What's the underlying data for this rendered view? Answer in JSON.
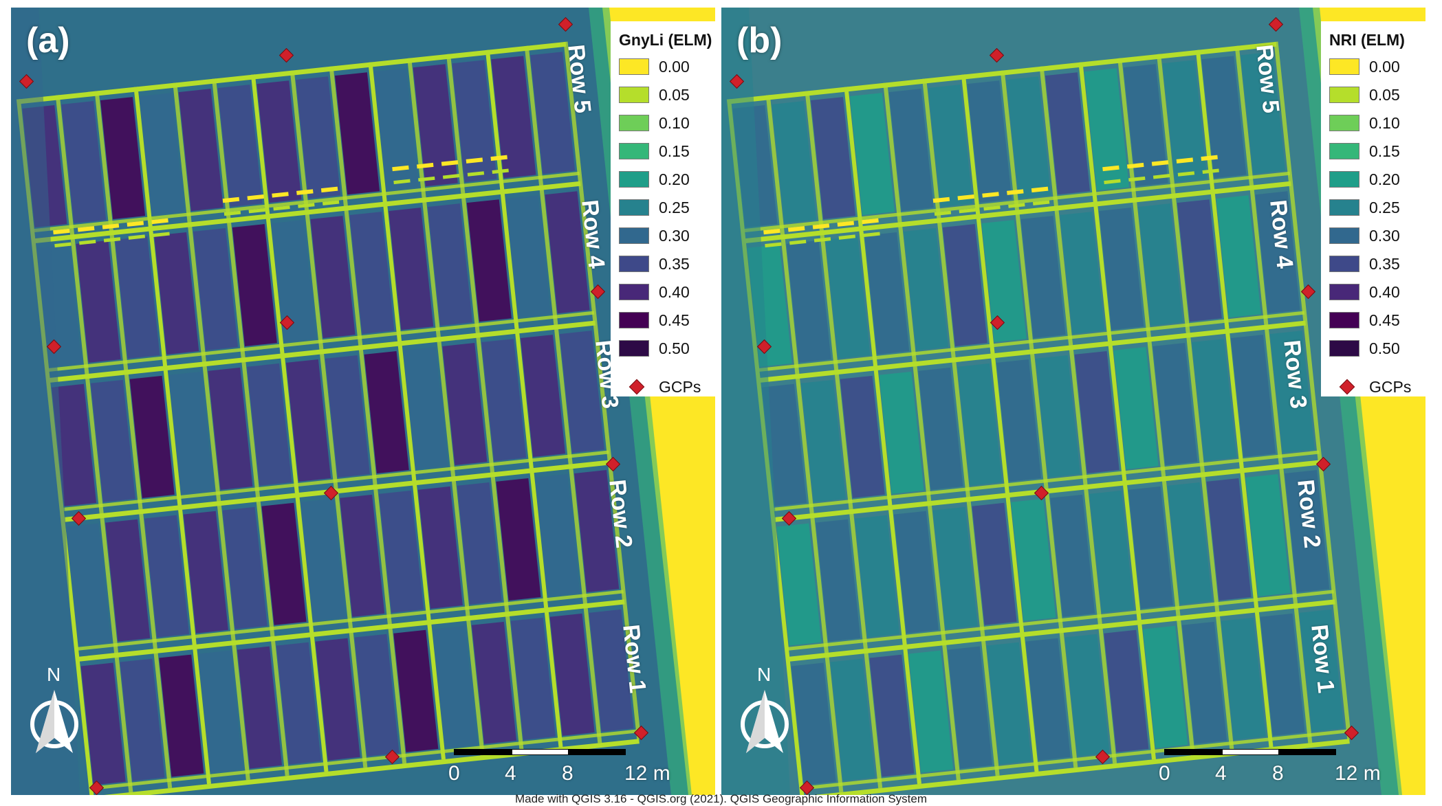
{
  "panels": [
    {
      "letter": "(a)",
      "legend_title": "GnyLi (ELM)",
      "background": "#2f6f8a"
    },
    {
      "letter": "(b)",
      "legend_title": "NRI (ELM)",
      "background": "#3b7f8c"
    }
  ],
  "legend": {
    "items": [
      {
        "label": "0.00",
        "color": "#fde725"
      },
      {
        "label": "0.05",
        "color": "#b5de2b"
      },
      {
        "label": "0.10",
        "color": "#6ece58"
      },
      {
        "label": "0.15",
        "color": "#35b779"
      },
      {
        "label": "0.20",
        "color": "#1f9e89"
      },
      {
        "label": "0.25",
        "color": "#26828e"
      },
      {
        "label": "0.30",
        "color": "#31688e"
      },
      {
        "label": "0.35",
        "color": "#3e4989"
      },
      {
        "label": "0.40",
        "color": "#482878"
      },
      {
        "label": "0.45",
        "color": "#440154"
      },
      {
        "label": "0.50",
        "color": "#2d0a46"
      }
    ],
    "gcp_label": "GCPs",
    "gcp_color": "#d0202a"
  },
  "row_labels": [
    "Row 5",
    "Row 4",
    "Row 3",
    "Row 2",
    "Row 1"
  ],
  "north_label": "N",
  "scale_bar": {
    "ticks": [
      "0",
      "4",
      "8",
      "12 m"
    ]
  },
  "credit": "Made with QGIS 3.16 - QGIS.org (2021). QGIS Geographic Information System"
}
